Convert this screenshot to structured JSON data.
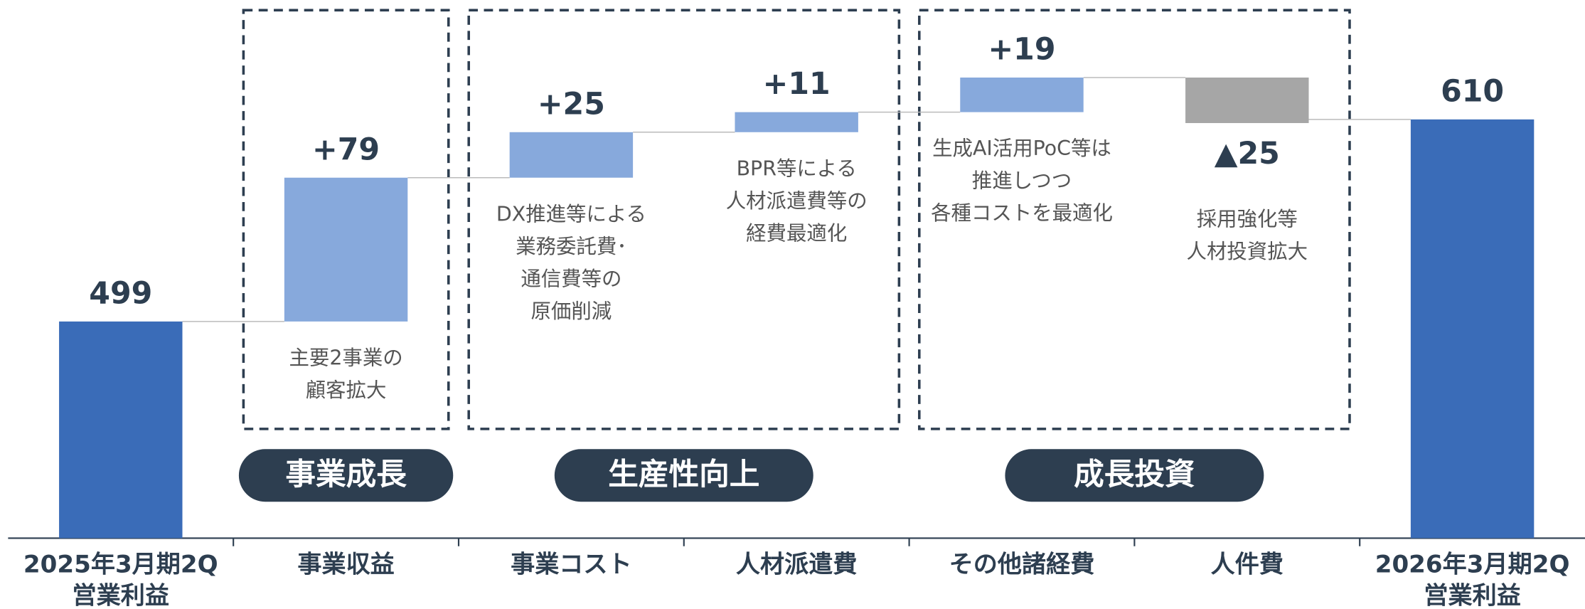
{
  "chart_data": {
    "type": "waterfall",
    "categories": [
      [
        "2025年3月期2Q",
        "営業利益"
      ],
      [
        "事業収益"
      ],
      [
        "事業コスト"
      ],
      [
        "人材派遣費"
      ],
      [
        "その他諸経費"
      ],
      [
        "人件費"
      ],
      [
        "2026年3月期2Q",
        "営業利益"
      ]
    ],
    "values": [
      499,
      79,
      25,
      11,
      19,
      -25,
      610
    ],
    "value_labels": [
      "499",
      "+79",
      "+25",
      "+11",
      "+19",
      "▲25",
      "610"
    ],
    "totals": [
      true,
      false,
      false,
      false,
      false,
      false,
      true
    ],
    "colors": {
      "total": "#3a6cb8",
      "increase": "#87a9dc",
      "decrease": "#a6a6a6"
    },
    "ylim": [
      380,
      640
    ],
    "notes": [
      null,
      [
        "主要2事業の",
        "顧客拡大"
      ],
      [
        "DX推進等による",
        "業務委託費･",
        "通信費等の",
        "原価削減"
      ],
      [
        "BPR等による",
        "人材派遣費等の",
        "経費最適化"
      ],
      [
        "生成AI活用PoC等は",
        "推進しつつ",
        "各種コストを最適化"
      ],
      [
        "採用強化等",
        "人材投資拡大"
      ],
      null
    ],
    "groups": [
      "事業成長",
      "生産性向上",
      "成長投資"
    ]
  }
}
